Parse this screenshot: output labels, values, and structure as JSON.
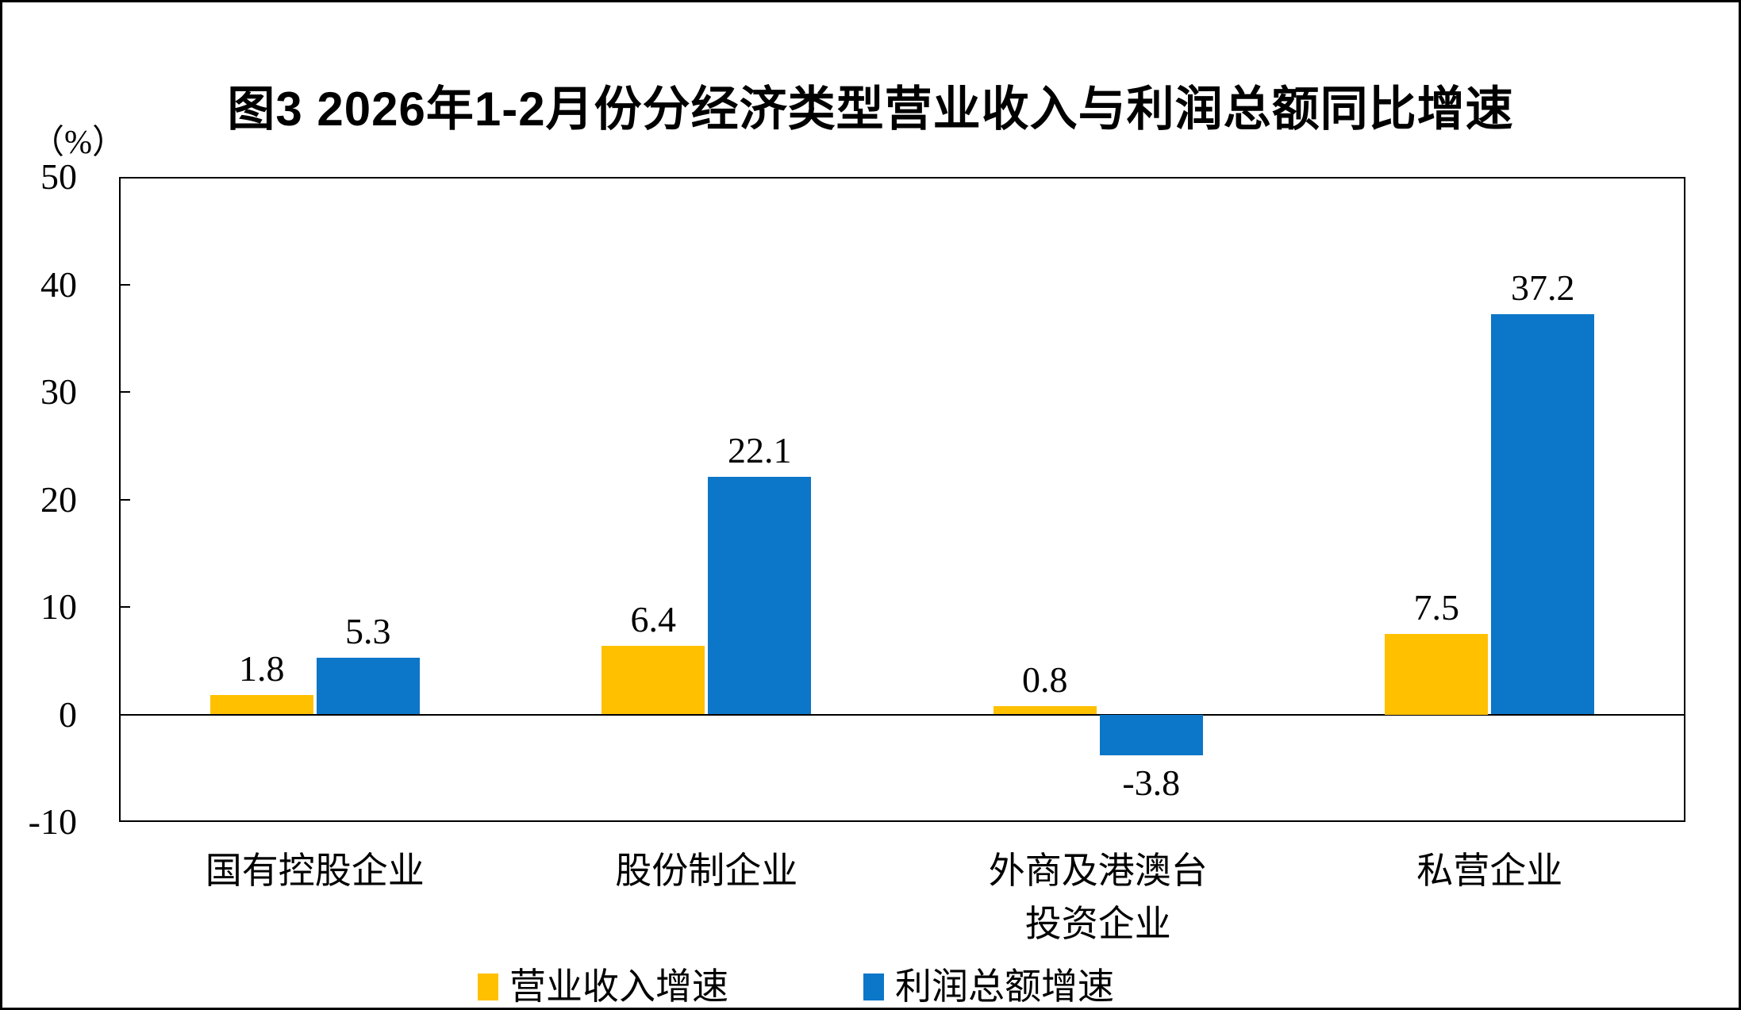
{
  "title": "图3 2026年1-2月份分经济类型营业收入与利润总额同比增速",
  "unit_label": "（%）",
  "colors": {
    "bar_yellow": "#FFC000",
    "bar_blue": "#0C76C8",
    "axis": "#000000",
    "background": "#FFFFFF"
  },
  "chart_data": {
    "type": "bar",
    "title": "图3 2026年1-2月份分经济类型营业收入与利润总额同比增速",
    "ylabel": "（%）",
    "categories": [
      "国有控股企业",
      "股份制企业",
      "外商及港澳台\n投资企业",
      "私营企业"
    ],
    "series": [
      {
        "name": "营业收入增速",
        "color": "#FFC000",
        "values": [
          1.8,
          6.4,
          0.8,
          7.5
        ]
      },
      {
        "name": "利润总额增速",
        "color": "#0C76C8",
        "values": [
          5.3,
          22.1,
          -3.8,
          37.2
        ]
      }
    ],
    "ylim": [
      -10,
      50
    ],
    "yticks": [
      50,
      40,
      30,
      20,
      10,
      0,
      -10
    ],
    "grid": false,
    "legend_position": "bottom"
  }
}
